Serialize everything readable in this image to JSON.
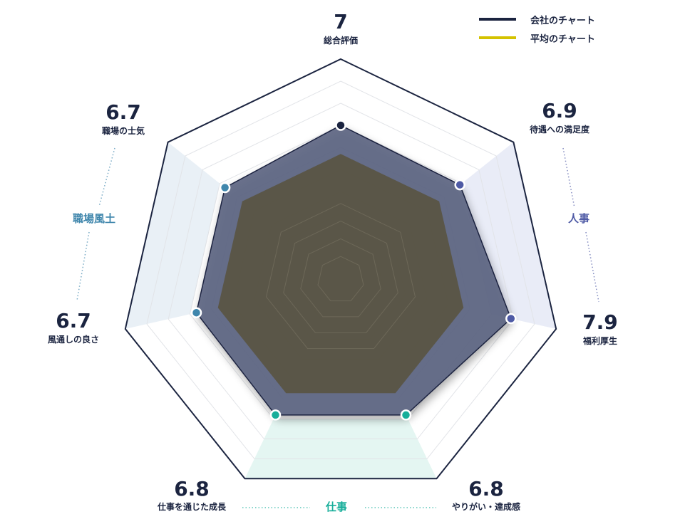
{
  "chart_data": {
    "type": "radar",
    "range": [
      0,
      10
    ],
    "categories": [
      {
        "label": "総合評価",
        "value": 7,
        "display": "7",
        "group": null
      },
      {
        "label": "待遇への満足度",
        "value": 6.9,
        "display": "6.9",
        "group": "jinji"
      },
      {
        "label": "福利厚生",
        "value": 7.9,
        "display": "7.9",
        "group": "jinji"
      },
      {
        "label": "やりがい・達成感",
        "value": 6.8,
        "display": "6.8",
        "group": "shigoto"
      },
      {
        "label": "仕事を通じた成長",
        "value": 6.8,
        "display": "6.8",
        "group": "shigoto"
      },
      {
        "label": "風通しの良さ",
        "value": 6.7,
        "display": "6.7",
        "group": "shokuba"
      },
      {
        "label": "職場の士気",
        "value": 6.7,
        "display": "6.7",
        "group": "shokuba"
      }
    ],
    "series": [
      {
        "name": "会社のチャート",
        "color": "#1b2440",
        "values": [
          7,
          6.9,
          7.9,
          6.8,
          6.8,
          6.7,
          6.7
        ]
      },
      {
        "name": "平均のチャート",
        "color": "#d4c200",
        "values": [
          5.7,
          5.7,
          5.7,
          5.7,
          5.7,
          5.7,
          5.7
        ]
      }
    ],
    "groups": [
      {
        "id": "jinji",
        "label": "人事",
        "color": "#4e5aa5",
        "bg": "#e9ecf7"
      },
      {
        "id": "shigoto",
        "label": "仕事",
        "color": "#17ae9a",
        "bg": "#e4f6f2"
      },
      {
        "id": "shokuba",
        "label": "職場風土",
        "color": "#3f86ac",
        "bg": "#e9f0f6"
      }
    ],
    "grid_levels": 10
  }
}
